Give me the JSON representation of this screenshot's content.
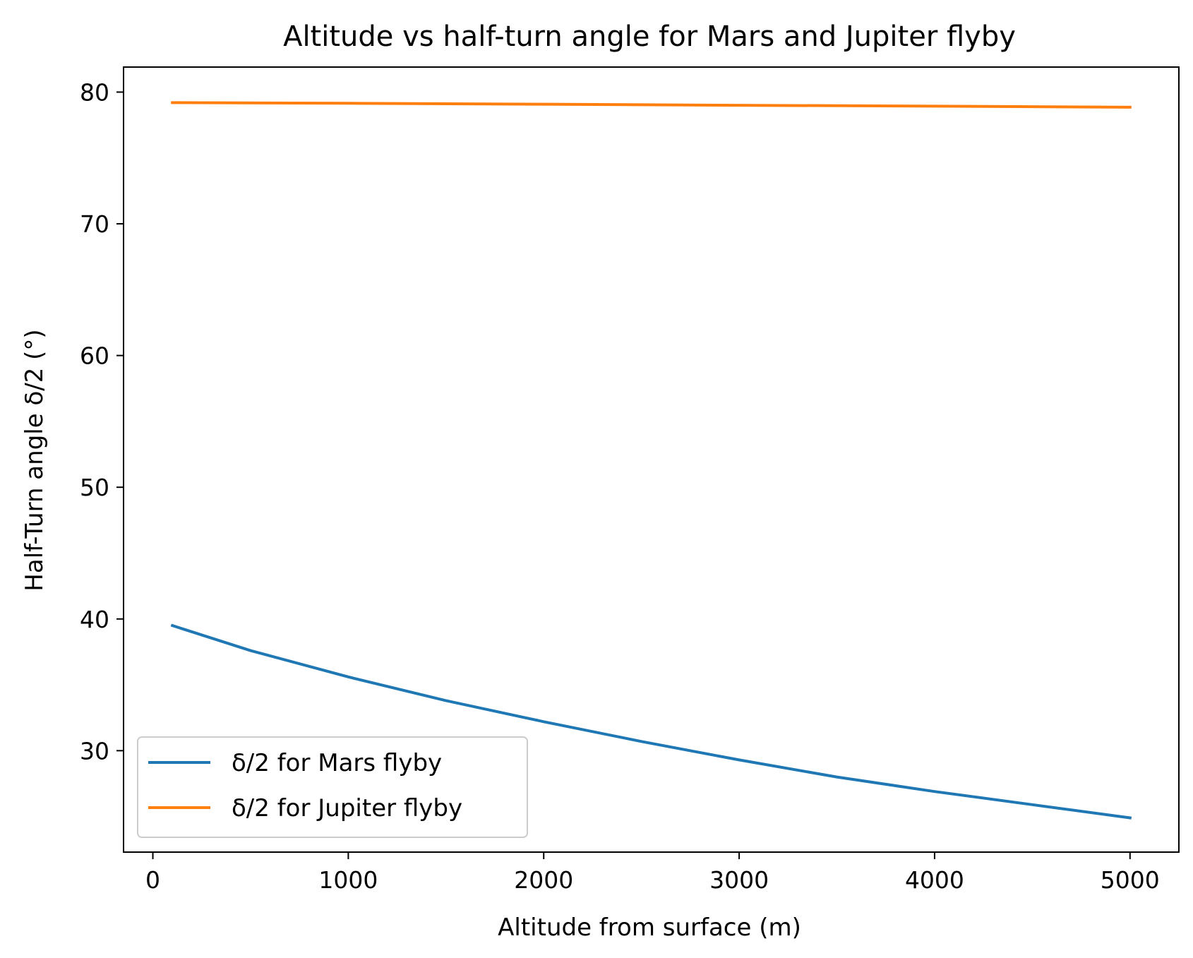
{
  "chart_data": {
    "type": "line",
    "title": "Altitude vs half-turn angle for Mars and Jupiter flyby",
    "xlabel": "Altitude from surface (m)",
    "ylabel": "Half-Turn angle δ/2 (°)",
    "xlim": [
      -150,
      5250
    ],
    "ylim": [
      22.3,
      81.9
    ],
    "xticks": [
      0,
      1000,
      2000,
      3000,
      4000,
      5000
    ],
    "yticks": [
      30,
      40,
      50,
      60,
      70,
      80
    ],
    "grid": false,
    "legend": "lower-left",
    "series": [
      {
        "name": "δ/2 for Mars flyby",
        "color": "#1f77b4",
        "x": [
          100,
          500,
          1000,
          1500,
          2000,
          2500,
          3000,
          3500,
          4000,
          4500,
          5000
        ],
        "y": [
          39.5,
          37.6,
          35.6,
          33.8,
          32.2,
          30.7,
          29.3,
          28.0,
          26.9,
          25.9,
          24.9
        ]
      },
      {
        "name": "δ/2 for Jupiter flyby",
        "color": "#ff7f0e",
        "x": [
          100,
          1000,
          2000,
          3000,
          4000,
          5000
        ],
        "y": [
          79.2,
          79.15,
          79.08,
          79.0,
          78.93,
          78.85
        ]
      }
    ]
  }
}
